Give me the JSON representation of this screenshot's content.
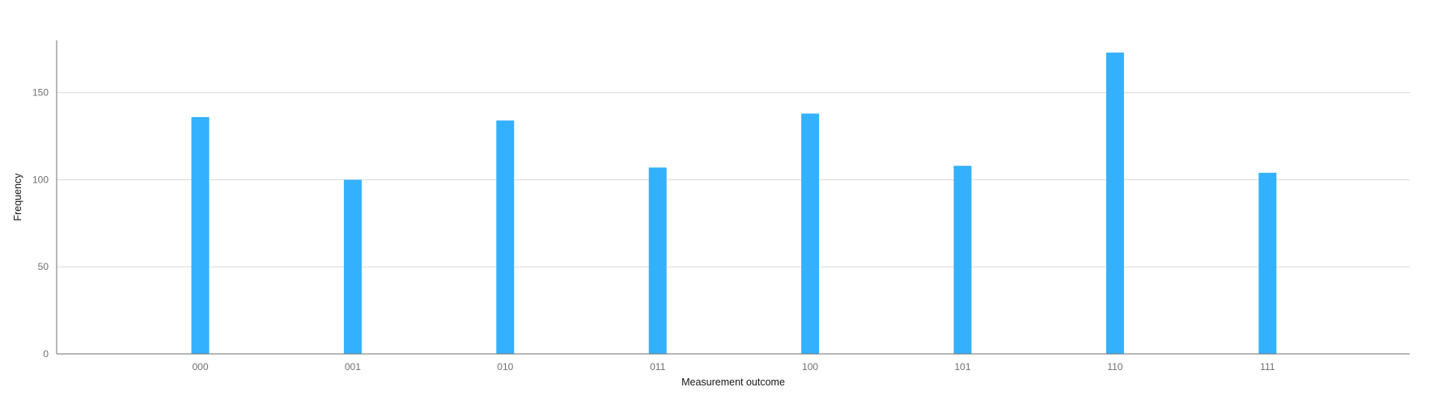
{
  "chart_data": {
    "type": "bar",
    "categories": [
      "000",
      "001",
      "010",
      "011",
      "100",
      "101",
      "110",
      "111"
    ],
    "values": [
      136,
      100,
      134,
      107,
      138,
      108,
      173,
      104
    ],
    "xlabel": "Measurement outcome",
    "ylabel": "Frequency",
    "ylim": [
      0,
      180
    ],
    "yticks": [
      0,
      50,
      100,
      150
    ],
    "grid": true,
    "legend": "none",
    "colors": {
      "bar": "#33b1ff",
      "grid": "#dcdcdc",
      "axis": "#6f6f6f"
    }
  }
}
